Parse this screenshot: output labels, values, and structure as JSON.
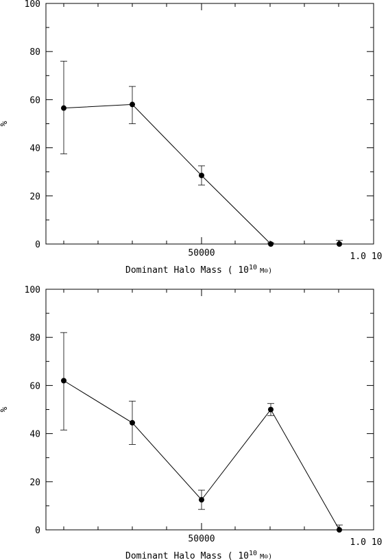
{
  "chart_data": [
    {
      "type": "line",
      "title": "",
      "xlabel": "Dominant Halo Mass ( 10",
      "xlabel_exp": "10",
      "xlabel_unit": "M⊙)",
      "ylabel": "%",
      "x_ticklabels": [
        "50000",
        "1.0  10"
      ],
      "y_ticklabels": [
        "0",
        "20",
        "40",
        "60",
        "80",
        "100"
      ],
      "ylim": [
        0,
        100
      ],
      "grid": false,
      "series": [
        {
          "values": [
            56.5,
            58.0,
            28.5,
            0.0,
            0.0
          ],
          "err_low": [
            37.5,
            50.0,
            24.5,
            0.0,
            0.0
          ],
          "err_high": [
            76.0,
            65.5,
            32.5,
            0.5,
            1.5
          ]
        }
      ]
    },
    {
      "type": "line",
      "title": "",
      "xlabel": "Dominant Halo Mass ( 10",
      "xlabel_exp": "10",
      "xlabel_unit": "M⊙)",
      "ylabel": "%",
      "x_ticklabels": [
        "50000",
        "1.0  10"
      ],
      "y_ticklabels": [
        "0",
        "20",
        "40",
        "60",
        "80",
        "100"
      ],
      "ylim": [
        0,
        100
      ],
      "grid": false,
      "series": [
        {
          "values": [
            62.0,
            44.5,
            12.5,
            50.0,
            0.0
          ],
          "err_low": [
            41.5,
            35.5,
            8.5,
            47.5,
            0.0
          ],
          "err_high": [
            82.0,
            53.5,
            16.5,
            52.5,
            2.0
          ]
        }
      ]
    }
  ]
}
